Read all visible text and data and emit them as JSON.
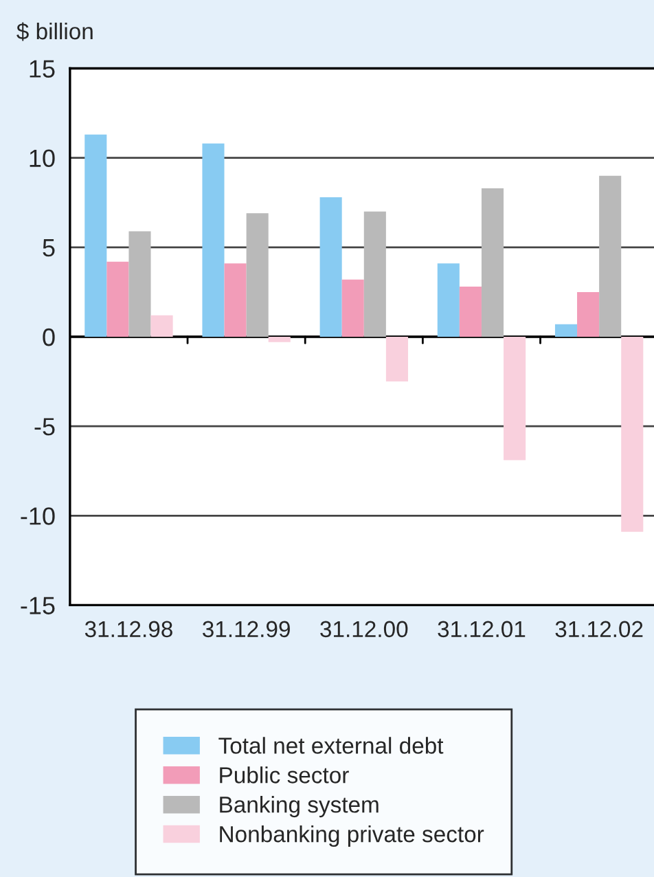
{
  "chart_data": {
    "type": "bar",
    "ylabel": "$ billion",
    "categories": [
      "31.12.98",
      "31.12.99",
      "31.12.00",
      "31.12.01",
      "31.12.02"
    ],
    "series": [
      {
        "name": "Total net external debt",
        "color": "#88cbf2",
        "values": [
          11.3,
          10.8,
          7.8,
          4.1,
          0.7
        ]
      },
      {
        "name": "Public sector",
        "color": "#f29cb8",
        "values": [
          4.2,
          4.1,
          3.2,
          2.8,
          2.5
        ]
      },
      {
        "name": "Banking system",
        "color": "#b9b9b9",
        "values": [
          5.9,
          6.9,
          7.0,
          8.3,
          9.0
        ]
      },
      {
        "name": "Nonbanking private sector",
        "color": "#f9d0dd",
        "values": [
          1.2,
          -0.3,
          -2.5,
          -6.9,
          -10.9
        ]
      }
    ],
    "ylim": [
      -15,
      15
    ],
    "yticks": [
      -15,
      -10,
      -5,
      0,
      5,
      10,
      15
    ],
    "grid": "y",
    "legend": "bottom"
  }
}
